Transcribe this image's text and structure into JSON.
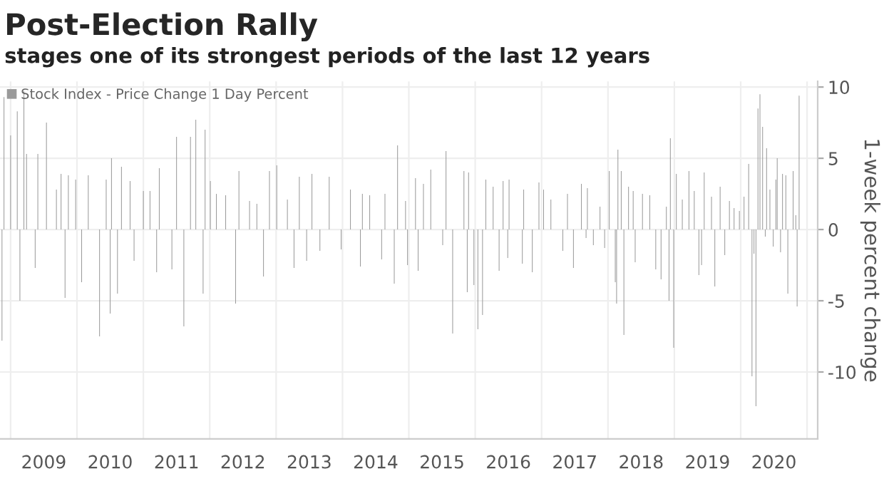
{
  "chart_data": {
    "type": "bar",
    "title": "Post-Election Rally",
    "subtitle": "stages one of its strongest periods of the last 12 years",
    "ylabel": "1-week percent change",
    "series": [
      {
        "name": "Stock Index - Price Change 1 Day Percent",
        "color": "#9a9a9a",
        "x": [
          2008.87,
          2008.9,
          2009.0,
          2009.1,
          2009.14,
          2009.2,
          2009.24,
          2009.37,
          2009.41,
          2009.54,
          2009.69,
          2009.76,
          2009.82,
          2009.87,
          2009.98,
          2010.07,
          2010.17,
          2010.34,
          2010.44,
          2010.5,
          2010.52,
          2010.61,
          2010.67,
          2010.8,
          2010.86,
          2011.0,
          2011.1,
          2011.2,
          2011.24,
          2011.43,
          2011.5,
          2011.61,
          2011.71,
          2011.79,
          2011.9,
          2011.93,
          2012.01,
          2012.1,
          2012.24,
          2012.39,
          2012.44,
          2012.6,
          2012.71,
          2012.81,
          2012.9,
          2013.01,
          2013.17,
          2013.27,
          2013.35,
          2013.46,
          2013.54,
          2013.66,
          2013.8,
          2013.98,
          2014.12,
          2014.27,
          2014.3,
          2014.41,
          2014.59,
          2014.64,
          2014.78,
          2014.83,
          2014.95,
          2014.98,
          2015.1,
          2015.14,
          2015.22,
          2015.33,
          2015.51,
          2015.56,
          2015.66,
          2015.83,
          2015.88,
          2015.9,
          2015.98,
          2016.04,
          2016.11,
          2016.16,
          2016.27,
          2016.36,
          2016.42,
          2016.49,
          2016.51,
          2016.71,
          2016.73,
          2016.86,
          2016.96,
          2017.03,
          2017.14,
          2017.32,
          2017.39,
          2017.48,
          2017.6,
          2017.67,
          2017.69,
          2017.78,
          2017.88,
          2017.95,
          2018.02,
          2018.11,
          2018.13,
          2018.15,
          2018.2,
          2018.24,
          2018.31,
          2018.38,
          2018.41,
          2018.52,
          2018.63,
          2018.72,
          2018.8,
          2018.88,
          2018.92,
          2018.94,
          2018.99,
          2019.03,
          2019.12,
          2019.22,
          2019.3,
          2019.37,
          2019.41,
          2019.45,
          2019.56,
          2019.61,
          2019.69,
          2019.76,
          2019.83,
          2019.9,
          2019.98,
          2020.05,
          2020.12,
          2020.17,
          2020.2,
          2020.23,
          2020.26,
          2020.29,
          2020.33,
          2020.37,
          2020.39,
          2020.44,
          2020.49,
          2020.53,
          2020.55,
          2020.6,
          2020.63,
          2020.68,
          2020.71,
          2020.79,
          2020.83,
          2020.85,
          2020.88
        ],
        "values": [
          -7.8,
          9.3,
          6.6,
          8.3,
          -5,
          9.7,
          5.3,
          -2.7,
          5.3,
          7.5,
          2.8,
          3.9,
          -4.8,
          3.8,
          3.5,
          -3.7,
          3.8,
          -7.5,
          3.5,
          -5.9,
          5,
          -4.5,
          4.4,
          3.4,
          -2.2,
          2.7,
          2.7,
          -3,
          4.3,
          -2.8,
          6.5,
          -6.8,
          6.5,
          7.7,
          -4.5,
          7,
          3.4,
          2.5,
          2.4,
          -5.2,
          4.1,
          2,
          1.8,
          -3.3,
          4.1,
          4.5,
          2.1,
          -2.7,
          3.7,
          -2.2,
          3.9,
          -1.5,
          3.7,
          -1.4,
          2.8,
          -2.6,
          2.5,
          2.4,
          -2.1,
          2.5,
          -3.8,
          5.9,
          2,
          -2.5,
          3.6,
          -2.9,
          3.2,
          4.2,
          -1.1,
          5.5,
          -7.3,
          4.1,
          -4.4,
          4,
          -3.9,
          -7,
          -6,
          3.5,
          3,
          -2.9,
          3.4,
          -2,
          3.5,
          -2.4,
          2.8,
          -3,
          3.3,
          2.8,
          2.1,
          -1.5,
          2.5,
          -2.7,
          3.2,
          -0.6,
          2.9,
          -1.1,
          1.6,
          -1.3,
          4.1,
          -3.7,
          -5.2,
          5.6,
          4.1,
          -7.4,
          3,
          2.7,
          -2.3,
          2.5,
          2.4,
          -2.8,
          -3.5,
          1.6,
          -5,
          6.4,
          -8.3,
          3.9,
          2.1,
          4.1,
          2.7,
          -3.2,
          -2.5,
          4,
          2.3,
          -4,
          3,
          -1.8,
          2,
          1.5,
          1.3,
          2.3,
          4.6,
          -10.3,
          -1.7,
          -12.4,
          8.5,
          9.5,
          7.2,
          -0.5,
          5.7,
          2.8,
          -1.2,
          3.5,
          5,
          -1.6,
          3.9,
          3.8,
          -4.5,
          4.1,
          1,
          -5.4,
          9.4
        ]
      }
    ],
    "xlim": [
      2008.84,
      2021.16
    ],
    "xticks": [
      {
        "value": 2009,
        "label": null
      },
      {
        "value": 2009.5,
        "label": "2009"
      },
      {
        "value": 2010,
        "label": null
      },
      {
        "value": 2010.5,
        "label": "2010"
      },
      {
        "value": 2011,
        "label": null
      },
      {
        "value": 2011.5,
        "label": "2011"
      },
      {
        "value": 2012,
        "label": null
      },
      {
        "value": 2012.5,
        "label": "2012"
      },
      {
        "value": 2013,
        "label": null
      },
      {
        "value": 2013.5,
        "label": "2013"
      },
      {
        "value": 2014,
        "label": null
      },
      {
        "value": 2014.5,
        "label": "2014"
      },
      {
        "value": 2015,
        "label": null
      },
      {
        "value": 2015.5,
        "label": "2015"
      },
      {
        "value": 2016,
        "label": null
      },
      {
        "value": 2016.5,
        "label": "2016"
      },
      {
        "value": 2017,
        "label": null
      },
      {
        "value": 2017.5,
        "label": "2017"
      },
      {
        "value": 2018,
        "label": null
      },
      {
        "value": 2018.5,
        "label": "2018"
      },
      {
        "value": 2019,
        "label": null
      },
      {
        "value": 2019.5,
        "label": "2019"
      },
      {
        "value": 2020,
        "label": null
      },
      {
        "value": 2020.5,
        "label": "2020"
      },
      {
        "value": 2021,
        "label": null
      }
    ],
    "ylim": [
      -14.7,
      10.4
    ],
    "yticks": [
      10,
      5,
      0,
      -5,
      -10
    ],
    "grid": true,
    "legend": "top left"
  }
}
